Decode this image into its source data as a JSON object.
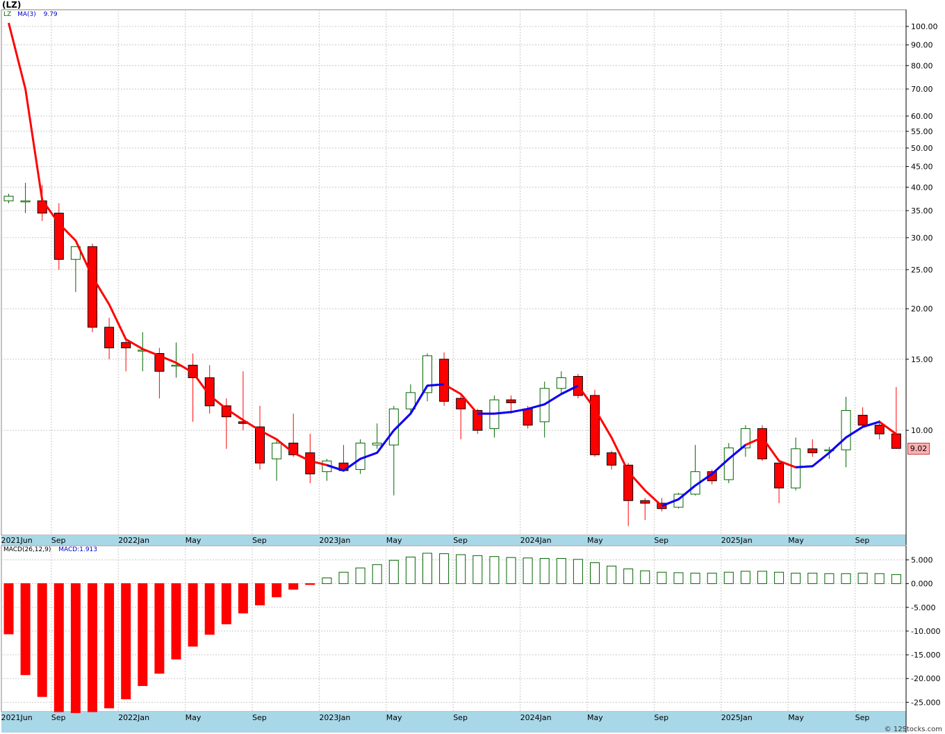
{
  "header": {
    "symbol_title": "(LZ)"
  },
  "price_legend": {
    "symbol": "LZ",
    "indicator": "MA(3)",
    "value": "9.79"
  },
  "macd_legend": {
    "indicator": "MACD(26,12,9)",
    "value": "MACD:1.913"
  },
  "last_price": "9.02",
  "credit": "© 12Stocks.com",
  "colors": {
    "up": "#006400",
    "down": "#ff0000",
    "ma_down": "#ff0000",
    "ma_up": "#0000ff",
    "grid": "#c8c8c8",
    "axis_band": "#a8d8e8"
  },
  "chart_data": [
    {
      "type": "candlestick",
      "title": "(LZ)",
      "scale": "log",
      "ylim": [
        5.5,
        110
      ],
      "yticks": [
        100,
        90,
        80,
        70,
        60,
        55,
        50,
        45,
        40,
        35,
        30,
        25,
        20,
        15,
        10
      ],
      "ytick_labels": [
        "100.00",
        "90.00",
        "80.00",
        "70.00",
        "60.00",
        "55.00",
        "50.00",
        "45.00",
        "40.00",
        "35.00",
        "30.00",
        "25.00",
        "20.00",
        "15.00",
        "10.00"
      ],
      "xtick_labels": [
        "2021Jun",
        "Sep",
        "2022Jan",
        "May",
        "Sep",
        "2023Jan",
        "May",
        "Sep",
        "2024Jan",
        "May",
        "Sep",
        "2025Jan",
        "May",
        "Sep"
      ],
      "xtick_months": [
        0,
        3,
        7,
        11,
        15,
        19,
        23,
        27,
        31,
        35,
        39,
        43,
        47,
        51
      ],
      "months": [
        "2021-06",
        "2021-07",
        "2021-08",
        "2021-09",
        "2021-10",
        "2021-11",
        "2021-12",
        "2022-01",
        "2022-02",
        "2022-03",
        "2022-04",
        "2022-05",
        "2022-06",
        "2022-07",
        "2022-08",
        "2022-09",
        "2022-10",
        "2022-11",
        "2022-12",
        "2023-01",
        "2023-02",
        "2023-03",
        "2023-04",
        "2023-05",
        "2023-06",
        "2023-07",
        "2023-08",
        "2023-09",
        "2023-10",
        "2023-11",
        "2023-12",
        "2024-01",
        "2024-02",
        "2024-03",
        "2024-04",
        "2024-05",
        "2024-06",
        "2024-07",
        "2024-08",
        "2024-09",
        "2024-10",
        "2024-11",
        "2024-12",
        "2025-01",
        "2025-02",
        "2025-03",
        "2025-04",
        "2025-05",
        "2025-06",
        "2025-07",
        "2025-08",
        "2025-09",
        "2025-10",
        "2025-11"
      ],
      "ohlc": [
        [
          37.0,
          38.5,
          36.5,
          38.0
        ],
        [
          37.0,
          41.0,
          34.5,
          37.0
        ],
        [
          37.0,
          40.5,
          33.0,
          34.5
        ],
        [
          34.5,
          36.5,
          25.0,
          26.5
        ],
        [
          26.5,
          28.5,
          22.0,
          28.5
        ],
        [
          28.5,
          29.0,
          17.5,
          18.0
        ],
        [
          18.0,
          19.0,
          15.0,
          16.0
        ],
        [
          16.5,
          17.0,
          14.0,
          16.0
        ],
        [
          15.8,
          17.5,
          14.0,
          15.8
        ],
        [
          15.5,
          16.0,
          12.0,
          14.0
        ],
        [
          14.5,
          16.5,
          13.5,
          14.5
        ],
        [
          14.5,
          15.5,
          10.5,
          13.5
        ],
        [
          13.5,
          14.5,
          11.0,
          11.5
        ],
        [
          11.5,
          12.0,
          9.0,
          10.8
        ],
        [
          10.5,
          14.0,
          10.0,
          10.4
        ],
        [
          10.2,
          11.5,
          8.0,
          8.3
        ],
        [
          8.5,
          9.5,
          7.5,
          9.3
        ],
        [
          9.3,
          11.0,
          8.6,
          8.7
        ],
        [
          8.8,
          9.8,
          7.4,
          7.8
        ],
        [
          7.9,
          8.5,
          7.5,
          8.4
        ],
        [
          8.3,
          9.2,
          7.9,
          7.95
        ],
        [
          8.0,
          9.5,
          7.8,
          9.3
        ],
        [
          9.2,
          10.4,
          9.0,
          9.3
        ],
        [
          9.2,
          11.5,
          6.9,
          11.3
        ],
        [
          11.3,
          13.0,
          11.0,
          12.4
        ],
        [
          12.4,
          15.5,
          11.8,
          15.3
        ],
        [
          15.0,
          15.6,
          11.5,
          11.8
        ],
        [
          12.0,
          12.2,
          9.5,
          11.3
        ],
        [
          11.2,
          11.3,
          9.8,
          10.0
        ],
        [
          10.1,
          12.2,
          9.6,
          11.9
        ],
        [
          11.9,
          12.2,
          11.0,
          11.7
        ],
        [
          11.3,
          11.5,
          10.1,
          10.3
        ],
        [
          10.5,
          13.2,
          9.6,
          12.7
        ],
        [
          12.7,
          14.0,
          12.3,
          13.5
        ],
        [
          13.6,
          13.8,
          12.0,
          12.2
        ],
        [
          12.2,
          12.6,
          8.6,
          8.7
        ],
        [
          8.8,
          8.9,
          8.0,
          8.2
        ],
        [
          8.2,
          8.3,
          5.8,
          6.7
        ],
        [
          6.7,
          6.8,
          6.0,
          6.6
        ],
        [
          6.6,
          6.8,
          6.3,
          6.4
        ],
        [
          6.45,
          7.0,
          6.4,
          6.95
        ],
        [
          6.95,
          9.2,
          6.9,
          7.9
        ],
        [
          7.9,
          8.0,
          7.35,
          7.5
        ],
        [
          7.55,
          9.3,
          7.4,
          9.05
        ],
        [
          9.05,
          10.3,
          8.6,
          10.1
        ],
        [
          10.1,
          10.3,
          8.4,
          8.5
        ],
        [
          8.3,
          8.3,
          6.6,
          7.2
        ],
        [
          7.2,
          9.6,
          7.1,
          9.0
        ],
        [
          9.0,
          9.5,
          8.6,
          8.8
        ],
        [
          8.9,
          9.1,
          8.5,
          8.95
        ],
        [
          8.95,
          12.1,
          8.1,
          11.2
        ],
        [
          10.9,
          11.4,
          10.2,
          10.3
        ],
        [
          10.3,
          10.6,
          9.5,
          9.8
        ],
        [
          9.8,
          12.8,
          9.0,
          9.02
        ]
      ],
      "ma3": [
        102.0,
        70.0,
        37.2,
        32.5,
        29.5,
        24.0,
        20.5,
        16.8,
        15.9,
        15.3,
        14.7,
        13.9,
        12.2,
        11.3,
        10.6,
        10.0,
        9.5,
        8.8,
        8.4,
        8.2,
        7.95,
        8.5,
        8.8,
        10.0,
        11.0,
        12.9,
        13.0,
        12.3,
        11.0,
        11.0,
        11.1,
        11.3,
        11.6,
        12.3,
        12.9,
        11.3,
        9.6,
        7.9,
        7.1,
        6.5,
        6.75,
        7.3,
        7.8,
        8.5,
        9.2,
        9.6,
        8.4,
        8.1,
        8.15,
        8.8,
        9.6,
        10.2,
        10.5,
        9.79
      ],
      "ma3_up_segments": [
        [
          19,
          26
        ],
        [
          28,
          34
        ],
        [
          39,
          44
        ],
        [
          47,
          52
        ]
      ]
    },
    {
      "type": "bar",
      "title": "MACD(26,12,9)",
      "ylim": [
        -27,
        8
      ],
      "yticks": [
        5,
        0,
        -5,
        -10,
        -15,
        -20,
        -25
      ],
      "ytick_labels": [
        "5.000",
        "0.000",
        "-5.000",
        "-10.000",
        "-15.000",
        "-20.000",
        "-25.000"
      ],
      "values": [
        -10.6,
        -19.2,
        -23.8,
        -27.0,
        -27.2,
        -27.0,
        -26.2,
        -24.3,
        -21.5,
        -18.9,
        -15.9,
        -13.2,
        -10.7,
        -8.5,
        -6.2,
        -4.5,
        -2.8,
        -1.2,
        -0.2,
        1.2,
        2.4,
        3.3,
        4.0,
        4.9,
        5.6,
        6.4,
        6.3,
        6.1,
        5.9,
        5.7,
        5.5,
        5.4,
        5.3,
        5.3,
        5.1,
        4.4,
        3.7,
        3.1,
        2.7,
        2.4,
        2.3,
        2.2,
        2.2,
        2.4,
        2.6,
        2.6,
        2.4,
        2.2,
        2.2,
        2.1,
        2.1,
        2.2,
        2.1,
        1.9
      ]
    }
  ]
}
